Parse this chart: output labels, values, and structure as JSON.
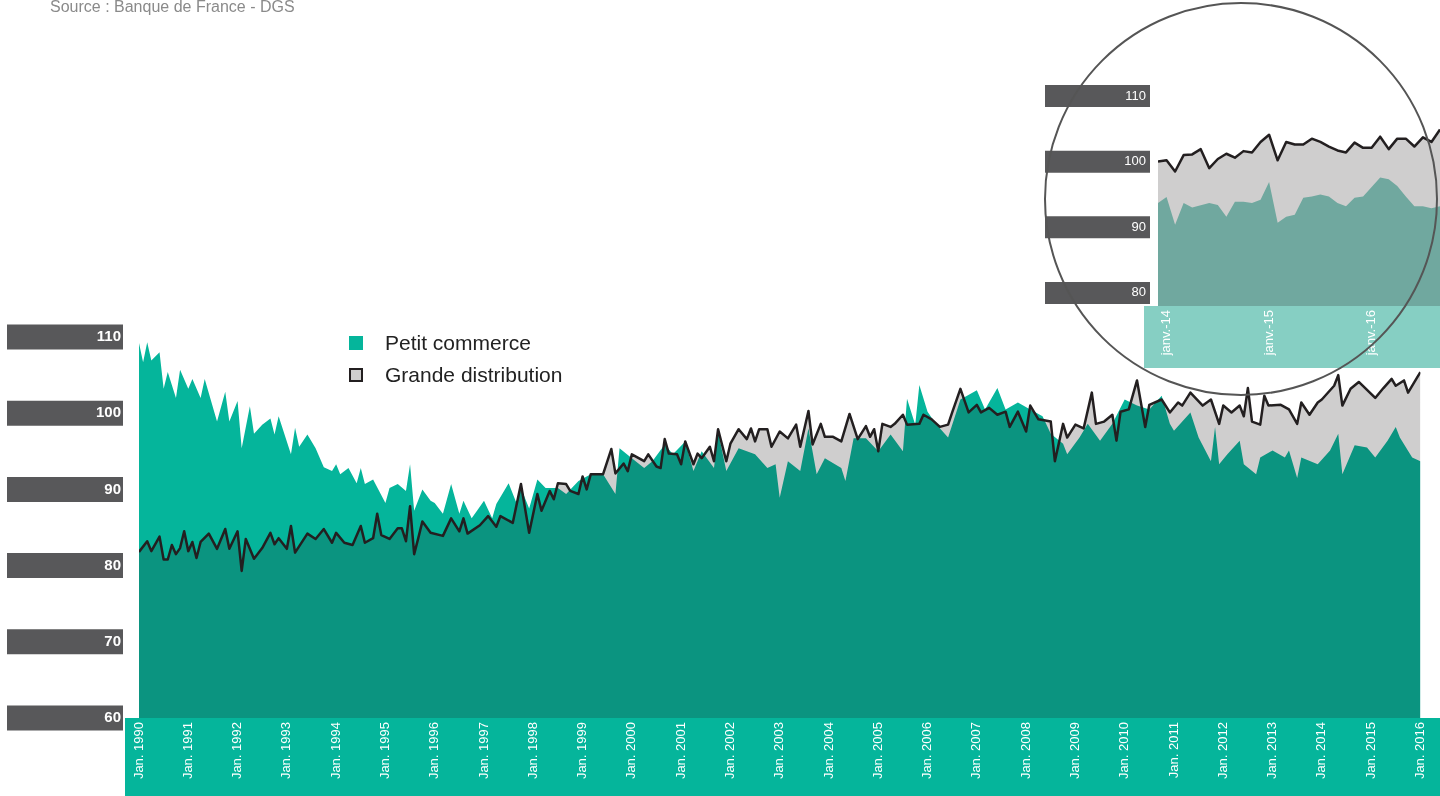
{
  "chart_data": [
    {
      "type": "area",
      "annotations": [
        "Source : Banque de France - DGS"
      ],
      "legend": "top left",
      "xlim": [
        "1990-01",
        "2016-01"
      ],
      "ylim": [
        60,
        110
      ],
      "yticks": [
        60,
        70,
        80,
        90,
        100,
        110
      ],
      "xticks": [
        {
          "value": "1990-01",
          "label": "Jan. 1990"
        },
        {
          "value": "1991-01",
          "label": "Jan. 1991"
        },
        {
          "value": "1992-01",
          "label": "Jan. 1992"
        },
        {
          "value": "1993-01",
          "label": "Jan. 1993"
        },
        {
          "value": "1994-01",
          "label": "Jan. 1994"
        },
        {
          "value": "1995-01",
          "label": "Jan. 1995"
        },
        {
          "value": "1996-01",
          "label": "Jan. 1996"
        },
        {
          "value": "1997-01",
          "label": "Jan. 1997"
        },
        {
          "value": "1998-01",
          "label": "Jan. 1998"
        },
        {
          "value": "1999-01",
          "label": "Jan. 1999"
        },
        {
          "value": "2000-01",
          "label": "Jan. 2000"
        },
        {
          "value": "2001-01",
          "label": "Jan. 2001"
        },
        {
          "value": "2002-01",
          "label": "Jan. 2002"
        },
        {
          "value": "2003-01",
          "label": "Jan. 2003"
        },
        {
          "value": "2004-01",
          "label": "Jan. 2004"
        },
        {
          "value": "2005-01",
          "label": "Jan. 2005"
        },
        {
          "value": "2006-01",
          "label": "Jan. 2006"
        },
        {
          "value": "2007-01",
          "label": "Jan. 2007"
        },
        {
          "value": "2008-01",
          "label": "Jan. 2008"
        },
        {
          "value": "2009-01",
          "label": "Jan. 2009"
        },
        {
          "value": "2010-01",
          "label": "Jan. 2010"
        },
        {
          "value": "2011-01",
          "label": "Jan. 2011"
        },
        {
          "value": "2012-01",
          "label": "Jan. 2012"
        },
        {
          "value": "2013-01",
          "label": "Jan. 2013"
        },
        {
          "value": "2014-01",
          "label": "Jan. 2014"
        },
        {
          "value": "2015-01",
          "label": "Jan. 2015"
        },
        {
          "value": "2016-01",
          "label": "Jan. 2016"
        }
      ],
      "series": [
        {
          "name": "Petit commerce",
          "color": "#05b59b",
          "x": [
            "1990-01",
            "1990-02",
            "1990-03",
            "1990-04",
            "1990-06",
            "1990-07",
            "1990-08",
            "1990-10",
            "1990-11",
            "1991-01",
            "1991-02",
            "1991-04",
            "1991-05",
            "1991-08",
            "1991-10",
            "1991-11",
            "1992-01",
            "1992-02",
            "1992-04",
            "1992-05",
            "1992-07",
            "1992-09",
            "1992-10",
            "1992-11",
            "1993-02",
            "1993-03",
            "1993-04",
            "1993-06",
            "1993-08",
            "1993-10",
            "1993-12",
            "1994-01",
            "1994-02",
            "1994-04",
            "1994-06",
            "1994-07",
            "1994-08",
            "1994-10",
            "1995-01",
            "1995-02",
            "1995-04",
            "1995-06",
            "1995-07",
            "1995-08",
            "1995-10",
            "1995-12",
            "1996-01",
            "1996-03",
            "1996-05",
            "1996-07",
            "1996-08",
            "1996-10",
            "1997-01",
            "1997-03",
            "1997-04",
            "1997-07",
            "1997-09",
            "1997-10",
            "1997-12",
            "1998-02",
            "1998-04",
            "1998-07",
            "1998-09",
            "1998-12",
            "1999-03",
            "1999-06",
            "1999-09",
            "1999-10",
            "2000-01",
            "2000-04",
            "2000-06",
            "2000-09",
            "2000-11",
            "2001-02",
            "2001-04",
            "2001-06",
            "2001-09",
            "2001-10",
            "2001-12",
            "2002-03",
            "2002-07",
            "2002-10",
            "2002-12",
            "2003-01",
            "2003-03",
            "2003-06",
            "2003-08",
            "2003-10",
            "2003-12",
            "2004-04",
            "2004-05",
            "2004-07",
            "2004-10",
            "2005-01",
            "2005-04",
            "2005-07",
            "2005-08",
            "2005-10",
            "2005-11",
            "2006-01",
            "2006-03",
            "2006-06",
            "2006-09",
            "2007-01",
            "2007-03",
            "2007-06",
            "2007-08",
            "2007-11",
            "2008-02",
            "2008-05",
            "2008-07",
            "2008-10",
            "2008-11",
            "2009-02",
            "2009-04",
            "2009-07",
            "2009-10",
            "2010-01",
            "2010-04",
            "2010-07",
            "2010-10",
            "2010-12",
            "2011-01",
            "2011-05",
            "2011-07",
            "2011-10",
            "2011-11",
            "2011-12",
            "2012-02",
            "2012-05",
            "2012-06",
            "2012-09",
            "2012-10",
            "2013-01",
            "2013-04",
            "2013-05",
            "2013-07",
            "2013-08",
            "2013-12",
            "2014-03",
            "2014-05",
            "2014-06",
            "2014-09",
            "2014-12",
            "2015-02",
            "2015-05",
            "2015-07",
            "2015-08",
            "2015-11",
            "2016-01"
          ],
          "values": [
            109.2,
            106.7,
            109.3,
            106.9,
            108.0,
            103.2,
            105.4,
            102.0,
            105.7,
            103.2,
            104.5,
            102.0,
            104.5,
            98.9,
            102.8,
            98.9,
            101.6,
            95.4,
            100.9,
            97.3,
            98.5,
            99.3,
            97.2,
            99.6,
            94.6,
            98.1,
            95.6,
            97.2,
            95.4,
            92.9,
            92.4,
            93.3,
            92.0,
            92.8,
            90.8,
            92.8,
            90.7,
            91.3,
            88.2,
            90.2,
            90.7,
            89.8,
            93.3,
            87.2,
            90.0,
            88.5,
            88.2,
            86.8,
            90.7,
            86.8,
            88.5,
            86.2,
            88.5,
            86.2,
            88.1,
            90.8,
            88.1,
            90.2,
            87.5,
            91.3,
            90.2,
            90.2,
            89.4,
            91.1,
            92.0,
            92.0,
            89.4,
            95.4,
            94.1,
            92.8,
            93.7,
            95.9,
            94.6,
            96.3,
            92.4,
            95.0,
            92.8,
            97.6,
            92.4,
            95.4,
            94.6,
            92.8,
            93.3,
            88.9,
            93.7,
            92.4,
            98.0,
            92.0,
            94.1,
            92.8,
            91.1,
            96.7,
            96.7,
            95.0,
            97.2,
            95.0,
            101.9,
            98.5,
            103.7,
            100.2,
            98.6,
            96.8,
            101.8,
            103.0,
            100.5,
            103.3,
            100.5,
            101.4,
            100.5,
            99.6,
            97.3,
            96.0,
            94.6,
            96.8,
            98.6,
            96.4,
            98.6,
            101.8,
            101.0,
            100.5,
            102.3,
            98.6,
            97.7,
            100.1,
            96.8,
            93.7,
            98.2,
            93.3,
            94.6,
            96.4,
            93.3,
            92.0,
            94.2,
            95.1,
            94.2,
            95.1,
            91.5,
            94.2,
            93.3,
            95.1,
            97.3,
            92.0,
            95.8,
            95.5,
            94.2,
            96.4,
            98.2,
            96.8,
            94.2,
            93.7
          ]
        },
        {
          "name": "Grande distribution",
          "color": "#231f20",
          "x": [
            "1990-01",
            "1990-03",
            "1990-04",
            "1990-06",
            "1990-07",
            "1990-08",
            "1990-09",
            "1990-10",
            "1990-11",
            "1990-12",
            "1991-01",
            "1991-02",
            "1991-03",
            "1991-04",
            "1991-06",
            "1991-08",
            "1991-10",
            "1991-11",
            "1992-01",
            "1992-02",
            "1992-03",
            "1992-05",
            "1992-07",
            "1992-09",
            "1992-10",
            "1992-11",
            "1993-01",
            "1993-02",
            "1993-03",
            "1993-06",
            "1993-08",
            "1993-10",
            "1993-12",
            "1994-01",
            "1994-03",
            "1994-05",
            "1994-07",
            "1994-08",
            "1994-10",
            "1994-11",
            "1994-12",
            "1995-02",
            "1995-04",
            "1995-05",
            "1995-06",
            "1995-07",
            "1995-08",
            "1995-09",
            "1995-10",
            "1995-12",
            "1996-03",
            "1996-05",
            "1996-07",
            "1996-08",
            "1996-09",
            "1996-12",
            "1997-02",
            "1997-04",
            "1997-05",
            "1997-08",
            "1997-10",
            "1997-12",
            "1998-02",
            "1998-03",
            "1998-05",
            "1998-06",
            "1998-07",
            "1998-09",
            "1998-10",
            "1998-12",
            "1999-01",
            "1999-02",
            "1999-03",
            "1999-06",
            "1999-08",
            "1999-09",
            "1999-11",
            "1999-12",
            "2000-01",
            "2000-04",
            "2000-05",
            "2000-07",
            "2000-08",
            "2000-09",
            "2000-10",
            "2000-12",
            "2001-01",
            "2001-02",
            "2001-04",
            "2001-05",
            "2001-06",
            "2001-08",
            "2001-09",
            "2001-10",
            "2001-12",
            "2002-01",
            "2002-03",
            "2002-05",
            "2002-06",
            "2002-07",
            "2002-08",
            "2002-10",
            "2002-11",
            "2003-01",
            "2003-03",
            "2003-05",
            "2003-06",
            "2003-08",
            "2003-09",
            "2003-11",
            "2003-12",
            "2004-02",
            "2004-04",
            "2004-06",
            "2004-08",
            "2004-10",
            "2004-11",
            "2004-12",
            "2005-01",
            "2005-02",
            "2005-04",
            "2005-05",
            "2005-07",
            "2005-08",
            "2005-11",
            "2005-12",
            "2006-02",
            "2006-04",
            "2006-06",
            "2006-07",
            "2006-09",
            "2006-11",
            "2007-01",
            "2007-02",
            "2007-04",
            "2007-06",
            "2007-08",
            "2007-09",
            "2007-11",
            "2008-01",
            "2008-02",
            "2008-04",
            "2008-07",
            "2008-08",
            "2008-10",
            "2008-11",
            "2009-01",
            "2009-03",
            "2009-05",
            "2009-06",
            "2009-08",
            "2009-10",
            "2009-11",
            "2009-12",
            "2010-02",
            "2010-04",
            "2010-06",
            "2010-07",
            "2010-10",
            "2010-12",
            "2011-02",
            "2011-03",
            "2011-05",
            "2011-08",
            "2011-10",
            "2011-12",
            "2012-01",
            "2012-03",
            "2012-05",
            "2012-06",
            "2012-07",
            "2012-08",
            "2012-10",
            "2012-11",
            "2012-12",
            "2013-03",
            "2013-05",
            "2013-07",
            "2013-08",
            "2013-10",
            "2013-12",
            "2014-01",
            "2014-04",
            "2014-05",
            "2014-06",
            "2014-08",
            "2014-10",
            "2015-02",
            "2015-04",
            "2015-06",
            "2015-07",
            "2015-09",
            "2015-10",
            "2015-12",
            "2016-01"
          ],
          "values": [
            81.8,
            83.2,
            81.9,
            83.8,
            80.8,
            80.8,
            82.7,
            81.5,
            82.3,
            84.5,
            81.9,
            83.1,
            81.0,
            83.1,
            84.2,
            82.2,
            84.8,
            82.2,
            84.5,
            79.3,
            83.5,
            80.9,
            82.3,
            84.3,
            82.8,
            83.6,
            82.2,
            85.2,
            81.7,
            84.2,
            83.5,
            84.8,
            83.0,
            84.3,
            83.0,
            82.7,
            85.2,
            83.0,
            83.6,
            86.8,
            84.0,
            83.5,
            84.9,
            84.9,
            83.2,
            87.8,
            81.5,
            83.6,
            85.8,
            84.3,
            83.9,
            86.2,
            84.5,
            86.2,
            84.2,
            85.3,
            86.5,
            85.1,
            86.5,
            85.6,
            90.7,
            84.3,
            89.4,
            87.2,
            89.8,
            88.7,
            90.8,
            90.7,
            89.8,
            89.4,
            91.7,
            90.0,
            92.0,
            92.0,
            95.3,
            92.1,
            93.4,
            92.4,
            94.6,
            93.7,
            94.6,
            93.0,
            92.8,
            96.6,
            94.7,
            94.6,
            93.3,
            96.3,
            93.3,
            94.7,
            94.1,
            95.6,
            93.7,
            97.9,
            93.7,
            96.0,
            97.9,
            96.6,
            98.0,
            96.3,
            97.9,
            97.9,
            95.6,
            97.6,
            96.7,
            98.5,
            95.6,
            100.3,
            95.9,
            98.6,
            96.9,
            96.9,
            96.3,
            99.9,
            96.6,
            98.3,
            96.9,
            97.9,
            95.0,
            98.6,
            98.2,
            98.6,
            99.8,
            98.5,
            98.6,
            99.8,
            99.2,
            98.2,
            98.5,
            100.1,
            103.2,
            100.1,
            101.1,
            100.1,
            100.7,
            99.8,
            100.2,
            98.2,
            100.2,
            97.6,
            101.0,
            99.2,
            98.9,
            93.7,
            98.6,
            96.8,
            98.5,
            98.0,
            102.7,
            98.6,
            98.9,
            99.8,
            96.4,
            100.2,
            100.5,
            104.3,
            98.2,
            101.1,
            101.8,
            100.1,
            101.4,
            101.0,
            102.7,
            101.0,
            101.8,
            98.6,
            101.0,
            100.1,
            101.0,
            99.6,
            103.3,
            98.9,
            98.5,
            102.3,
            101.0,
            101.1,
            100.5,
            98.6,
            101.4,
            99.8,
            101.4,
            101.8,
            103.6,
            105.0,
            101.0,
            103.2,
            104.1,
            102.0,
            103.3,
            104.5,
            103.6,
            104.3,
            102.7,
            104.5,
            105.4
          ]
        }
      ]
    },
    {
      "type": "area",
      "xlim": [
        "2013-12",
        "2016-09"
      ],
      "ylim": [
        78,
        110
      ],
      "yticks": [
        80,
        90,
        100,
        110
      ],
      "xticks": [
        {
          "value": "2014-01",
          "label": "janv.-14"
        },
        {
          "value": "2015-01",
          "label": "janv.-15"
        },
        {
          "value": "2016-01",
          "label": "janv.-16"
        }
      ],
      "series": [
        {
          "color": "#86cfc3",
          "x": [
            "2013-12",
            "2014-01",
            "2014-02",
            "2014-03",
            "2014-04",
            "2014-06",
            "2014-07",
            "2014-08",
            "2014-09",
            "2014-10",
            "2014-11",
            "2014-12",
            "2015-01",
            "2015-02",
            "2015-03",
            "2015-04",
            "2015-05",
            "2015-06",
            "2015-07",
            "2015-08",
            "2015-09",
            "2015-10",
            "2015-11",
            "2015-12",
            "2016-02",
            "2016-03",
            "2016-04",
            "2016-05",
            "2016-06",
            "2016-07",
            "2016-08",
            "2016-09"
          ],
          "values": [
            93.7,
            94.6,
            90.4,
            93.7,
            93.0,
            93.7,
            93.4,
            91.6,
            93.9,
            93.9,
            93.7,
            94.2,
            96.9,
            90.7,
            91.6,
            91.9,
            94.5,
            94.7,
            95.0,
            94.7,
            93.7,
            93.2,
            94.5,
            94.7,
            97.6,
            97.3,
            96.3,
            94.7,
            93.2,
            93.2,
            92.9,
            93.2
          ]
        },
        {
          "color": "#231f20",
          "x": [
            "2013-12",
            "2014-01",
            "2014-02",
            "2014-03",
            "2014-04",
            "2014-05",
            "2014-06",
            "2014-07",
            "2014-08",
            "2014-09",
            "2014-10",
            "2014-11",
            "2014-12",
            "2015-01",
            "2015-02",
            "2015-03",
            "2015-04",
            "2015-05",
            "2015-06",
            "2015-07",
            "2015-08",
            "2015-09",
            "2015-10",
            "2015-11",
            "2015-12",
            "2016-01",
            "2016-02",
            "2016-03",
            "2016-04",
            "2016-05",
            "2016-06",
            "2016-07",
            "2016-08",
            "2016-09"
          ],
          "values": [
            100.0,
            100.2,
            98.5,
            101.0,
            101.1,
            101.9,
            99.0,
            100.4,
            101.2,
            100.6,
            101.6,
            101.4,
            103.0,
            104.1,
            100.2,
            103.0,
            102.6,
            102.6,
            103.5,
            103.0,
            102.3,
            101.7,
            101.4,
            102.9,
            102.1,
            102.1,
            103.8,
            101.9,
            103.5,
            103.5,
            102.3,
            103.7,
            103.0,
            104.9
          ]
        }
      ]
    }
  ]
}
